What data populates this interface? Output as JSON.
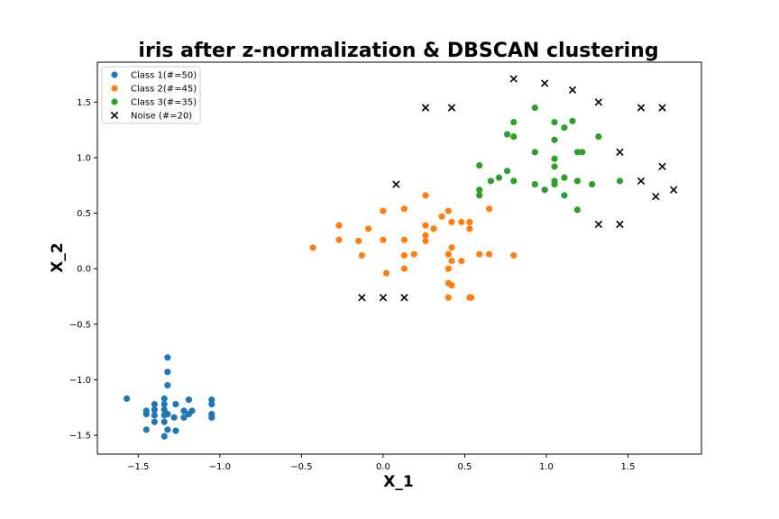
{
  "chart_data": {
    "type": "scatter",
    "title": "iris after z-normalization & DBSCAN clustering",
    "xlabel": "X_1",
    "ylabel": "X_2",
    "xlim": [
      -1.75,
      1.95
    ],
    "ylim": [
      -1.67,
      1.86
    ],
    "xticks": [
      -1.5,
      -1.0,
      -0.5,
      0.0,
      0.5,
      1.0,
      1.5
    ],
    "xtick_labels": [
      "−1.5",
      "−1.0",
      "−0.5",
      "0.0",
      "0.5",
      "1.0",
      "1.5"
    ],
    "yticks": [
      -1.5,
      -1.0,
      -0.5,
      0.0,
      0.5,
      1.0,
      1.5
    ],
    "ytick_labels": [
      "−1.5",
      "−1.0",
      "−0.5",
      "0.0",
      "0.5",
      "1.0",
      "1.5"
    ],
    "grid": false,
    "legend_position": "top-left",
    "series": [
      {
        "name": "Class 1(#=50)",
        "marker": "circle",
        "color": "#1f77b4",
        "points": [
          [
            -1.57,
            -1.17
          ],
          [
            -1.45,
            -1.28
          ],
          [
            -1.45,
            -1.31
          ],
          [
            -1.45,
            -1.45
          ],
          [
            -1.4,
            -1.22
          ],
          [
            -1.4,
            -1.27
          ],
          [
            -1.4,
            -1.32
          ],
          [
            -1.4,
            -1.38
          ],
          [
            -1.34,
            -1.17
          ],
          [
            -1.34,
            -1.22
          ],
          [
            -1.34,
            -1.27
          ],
          [
            -1.34,
            -1.32
          ],
          [
            -1.34,
            -1.38
          ],
          [
            -1.34,
            -1.51
          ],
          [
            -1.32,
            -0.8
          ],
          [
            -1.32,
            -0.93
          ],
          [
            -1.32,
            -1.05
          ],
          [
            -1.32,
            -1.31
          ],
          [
            -1.32,
            -1.45
          ],
          [
            -1.28,
            -1.34
          ],
          [
            -1.27,
            -1.22
          ],
          [
            -1.27,
            -1.46
          ],
          [
            -1.22,
            -1.28
          ],
          [
            -1.22,
            -1.34
          ],
          [
            -1.19,
            -1.18
          ],
          [
            -1.19,
            -1.31
          ],
          [
            -1.17,
            -1.28
          ],
          [
            -1.05,
            -1.18
          ],
          [
            -1.05,
            -1.22
          ],
          [
            -1.05,
            -1.31
          ],
          [
            -1.05,
            -1.34
          ]
        ]
      },
      {
        "name": "Class 2(#=45)",
        "marker": "circle",
        "color": "#ff7f0e",
        "points": [
          [
            -0.43,
            0.19
          ],
          [
            -0.27,
            0.39
          ],
          [
            -0.27,
            0.26
          ],
          [
            -0.15,
            0.25
          ],
          [
            -0.13,
            0.12
          ],
          [
            -0.09,
            0.36
          ],
          [
            0.0,
            0.52
          ],
          [
            0.0,
            0.26
          ],
          [
            0.02,
            -0.04
          ],
          [
            0.13,
            0.54
          ],
          [
            0.13,
            0.26
          ],
          [
            0.13,
            0.12
          ],
          [
            0.13,
            0.0
          ],
          [
            0.19,
            0.13
          ],
          [
            0.26,
            0.66
          ],
          [
            0.26,
            0.39
          ],
          [
            0.26,
            0.3
          ],
          [
            0.26,
            0.25
          ],
          [
            0.31,
            0.36
          ],
          [
            0.36,
            0.47
          ],
          [
            0.4,
            0.52
          ],
          [
            0.4,
            0.13
          ],
          [
            0.4,
            0.0
          ],
          [
            0.4,
            -0.13
          ],
          [
            0.4,
            -0.26
          ],
          [
            0.42,
            0.42
          ],
          [
            0.42,
            0.19
          ],
          [
            0.42,
            0.07
          ],
          [
            0.42,
            -0.15
          ],
          [
            0.48,
            0.42
          ],
          [
            0.48,
            0.07
          ],
          [
            0.53,
            0.42
          ],
          [
            0.53,
            0.36
          ],
          [
            0.53,
            -0.26
          ],
          [
            0.54,
            -0.26
          ],
          [
            0.59,
            0.13
          ],
          [
            0.65,
            0.54
          ],
          [
            0.65,
            0.13
          ],
          [
            0.8,
            0.12
          ]
        ]
      },
      {
        "name": "Class 3(#=35)",
        "marker": "circle",
        "color": "#2ca02c",
        "points": [
          [
            0.59,
            0.93
          ],
          [
            0.59,
            0.71
          ],
          [
            0.59,
            0.66
          ],
          [
            0.66,
            0.79
          ],
          [
            0.71,
            0.82
          ],
          [
            0.76,
            1.21
          ],
          [
            0.76,
            0.88
          ],
          [
            0.8,
            1.32
          ],
          [
            0.8,
            1.19
          ],
          [
            0.8,
            0.79
          ],
          [
            0.93,
            1.45
          ],
          [
            0.93,
            1.05
          ],
          [
            0.93,
            0.76
          ],
          [
            0.99,
            0.71
          ],
          [
            1.05,
            1.32
          ],
          [
            1.05,
            1.16
          ],
          [
            1.05,
            0.99
          ],
          [
            1.05,
            0.92
          ],
          [
            1.05,
            0.79
          ],
          [
            1.05,
            0.76
          ],
          [
            1.11,
            1.27
          ],
          [
            1.11,
            0.82
          ],
          [
            1.11,
            0.66
          ],
          [
            1.16,
            1.33
          ],
          [
            1.19,
            1.05
          ],
          [
            1.19,
            0.79
          ],
          [
            1.19,
            0.53
          ],
          [
            1.22,
            1.05
          ],
          [
            1.28,
            0.76
          ],
          [
            1.32,
            1.19
          ],
          [
            1.45,
            0.79
          ]
        ]
      },
      {
        "name": "Noise (#=20)",
        "marker": "x",
        "color": "#000000",
        "points": [
          [
            -0.13,
            -0.26
          ],
          [
            0.0,
            -0.26
          ],
          [
            0.08,
            0.76
          ],
          [
            0.13,
            -0.26
          ],
          [
            0.26,
            1.45
          ],
          [
            0.42,
            1.45
          ],
          [
            0.8,
            1.71
          ],
          [
            0.99,
            1.67
          ],
          [
            1.16,
            1.61
          ],
          [
            1.32,
            1.5
          ],
          [
            1.32,
            0.4
          ],
          [
            1.45,
            1.05
          ],
          [
            1.45,
            0.4
          ],
          [
            1.58,
            1.45
          ],
          [
            1.58,
            0.79
          ],
          [
            1.67,
            0.65
          ],
          [
            1.71,
            1.45
          ],
          [
            1.71,
            0.92
          ],
          [
            1.78,
            0.71
          ]
        ]
      }
    ]
  }
}
